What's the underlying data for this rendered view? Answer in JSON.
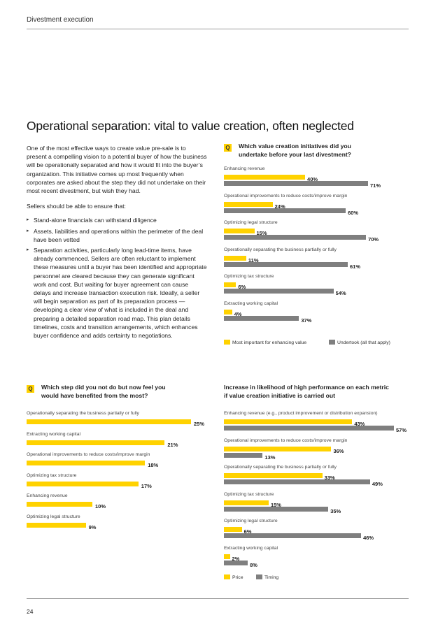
{
  "header": {
    "section": "Divestment execution"
  },
  "title": "Operational separation: vital to value creation, often neglected",
  "body": {
    "paragraph1": "One of the most effective ways to create value pre-sale is to present a compelling vision to a potential buyer of how the business will be operationally separated and how it would fit into the buyer’s organization. This initiative comes up most frequently when corporates are asked about the step they did not undertake on their most recent divestment, but wish they had.",
    "paragraph2": "Sellers should be able to ensure that:",
    "bullets": [
      "Stand-alone financials can withstand diligence",
      "Assets, liabilities and operations within the perimeter of the deal have been vetted",
      "Separation activities, particularly long lead-time items, have already commenced. Sellers are often reluctant to implement these measures until a buyer has been identified and appropriate personnel are cleared because they can generate significant work and cost. But waiting for buyer agreement can cause delays and increase transaction execution risk. Ideally, a seller will begin separation as part of its preparation process — developing a clear view of what is included in the deal and preparing a detailed separation road map. This plan details timelines, costs and transition arrangements, which enhances buyer confidence and adds certainty to negotiations."
    ]
  },
  "q_badge": "Q",
  "colors": {
    "yellow": "#ffd200",
    "gray": "#7f7f7f"
  },
  "chart_data": [
    {
      "type": "bar",
      "question": "Which value creation initiatives did you undertake before your last divestment?",
      "categories": [
        "Enhancing revenue",
        "Operational improvements to reduce costs/improve margin",
        "Optimizing legal structure",
        "Operationally separating the business partially or fully",
        "Optimizing tax structure",
        "Extracting working capital"
      ],
      "series": [
        {
          "name": "Most important for enhancing value",
          "color": "#ffd200",
          "values": [
            40,
            24,
            15,
            11,
            6,
            4
          ],
          "labels": [
            "40%",
            "24%",
            "15%",
            "11%",
            "6%",
            "4%"
          ]
        },
        {
          "name": "Undertook (all that apply)",
          "color": "#7f7f7f",
          "values": [
            71,
            60,
            70,
            61,
            54,
            37
          ],
          "labels": [
            "71%",
            "60%",
            "70%",
            "61%",
            "54%",
            "37%"
          ]
        }
      ],
      "xlim": [
        0,
        71
      ]
    },
    {
      "type": "bar",
      "question": "Which step did you not do but now feel you would have benefited from the most?",
      "categories": [
        "Operationally separating the business partially or fully",
        "Extracting working capital",
        "Operational improvements to reduce costs/improve margin",
        "Optimizing tax structure",
        "Enhancing revenue",
        "Optimizing legal structure"
      ],
      "series": [
        {
          "name": "",
          "color": "#ffd200",
          "values": [
            25,
            21,
            18,
            17,
            10,
            9
          ],
          "labels": [
            "25%",
            "21%",
            "18%",
            "17%",
            "10%",
            "9%"
          ]
        }
      ],
      "xlim": [
        0,
        25
      ]
    },
    {
      "type": "bar",
      "title": "Increase in likelihood of high performance on each metric if value creation initiative is carried out",
      "categories": [
        "Enhancing revenue (e.g., product improvement or distribution expansion)",
        "Operational improvements to reduce costs/improve margin",
        "Operationally separating the business partially or fully",
        "Optimizing tax structure",
        "Optimizing legal structure",
        "Extracting working capital"
      ],
      "series": [
        {
          "name": "Price",
          "color": "#ffd200",
          "values": [
            43,
            36,
            33,
            15,
            6,
            2
          ],
          "labels": [
            "43%",
            "36%",
            "33%",
            "15%",
            "6%",
            "2%"
          ]
        },
        {
          "name": "Timing",
          "color": "#7f7f7f",
          "values": [
            57,
            13,
            49,
            35,
            46,
            8
          ],
          "labels": [
            "57%",
            "13%",
            "49%",
            "35%",
            "46%",
            "8%"
          ]
        }
      ],
      "xlim": [
        0,
        57
      ]
    }
  ],
  "page_number": "24"
}
